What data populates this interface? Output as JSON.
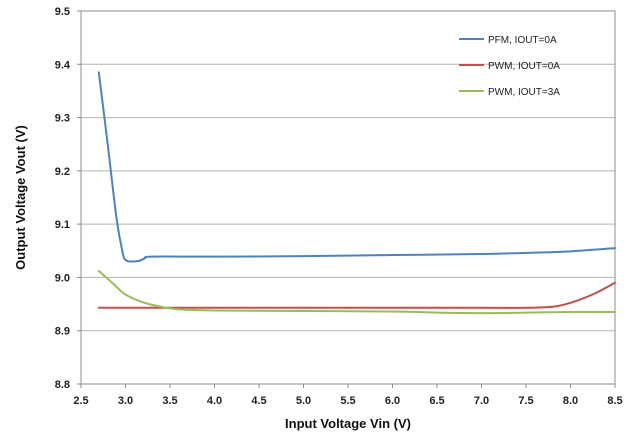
{
  "chart_data": {
    "type": "line",
    "title": "",
    "xlabel": "Input Voltage Vin (V)",
    "ylabel": "Output Voltage Vout (V)",
    "xlim": [
      2.5,
      8.5
    ],
    "ylim": [
      8.8,
      9.5
    ],
    "x_ticks": [
      "2.5",
      "3.0",
      "3.5",
      "4.0",
      "4.5",
      "5.0",
      "5.5",
      "6.0",
      "6.5",
      "7.0",
      "7.5",
      "8.0",
      "8.5"
    ],
    "y_ticks": [
      "8.8",
      "8.9",
      "9.0",
      "9.1",
      "9.2",
      "9.3",
      "9.4",
      "9.5"
    ],
    "grid": "horizontal",
    "legend_position": "top-right",
    "series": [
      {
        "name": "PFM, IOUT=0A",
        "color": "#4f81bd",
        "points": [
          [
            2.7,
            9.385
          ],
          [
            2.8,
            9.25
          ],
          [
            2.9,
            9.11
          ],
          [
            2.97,
            9.045
          ],
          [
            3.0,
            9.033
          ],
          [
            3.05,
            9.03
          ],
          [
            3.15,
            9.031
          ],
          [
            3.22,
            9.036
          ],
          [
            3.3,
            9.039
          ],
          [
            4.0,
            9.039
          ],
          [
            5.0,
            9.04
          ],
          [
            6.0,
            9.042
          ],
          [
            7.0,
            9.044
          ],
          [
            7.5,
            9.046
          ],
          [
            8.0,
            9.049
          ],
          [
            8.5,
            9.055
          ]
        ]
      },
      {
        "name": "PWM, IOUT=0A",
        "color": "#c0504d",
        "points": [
          [
            2.7,
            8.943
          ],
          [
            3.0,
            8.943
          ],
          [
            4.0,
            8.943
          ],
          [
            5.0,
            8.943
          ],
          [
            6.0,
            8.943
          ],
          [
            7.0,
            8.943
          ],
          [
            7.5,
            8.943
          ],
          [
            7.8,
            8.945
          ],
          [
            7.95,
            8.95
          ],
          [
            8.1,
            8.958
          ],
          [
            8.3,
            8.972
          ],
          [
            8.5,
            8.99
          ]
        ]
      },
      {
        "name": "PWM, IOUT=3A",
        "color": "#9bbb59",
        "points": [
          [
            2.7,
            9.012
          ],
          [
            2.85,
            8.99
          ],
          [
            3.0,
            8.968
          ],
          [
            3.2,
            8.953
          ],
          [
            3.4,
            8.945
          ],
          [
            3.6,
            8.94
          ],
          [
            4.0,
            8.938
          ],
          [
            5.0,
            8.937
          ],
          [
            6.0,
            8.936
          ],
          [
            6.5,
            8.934
          ],
          [
            7.0,
            8.933
          ],
          [
            7.5,
            8.934
          ],
          [
            8.0,
            8.935
          ],
          [
            8.5,
            8.935
          ]
        ]
      }
    ]
  }
}
